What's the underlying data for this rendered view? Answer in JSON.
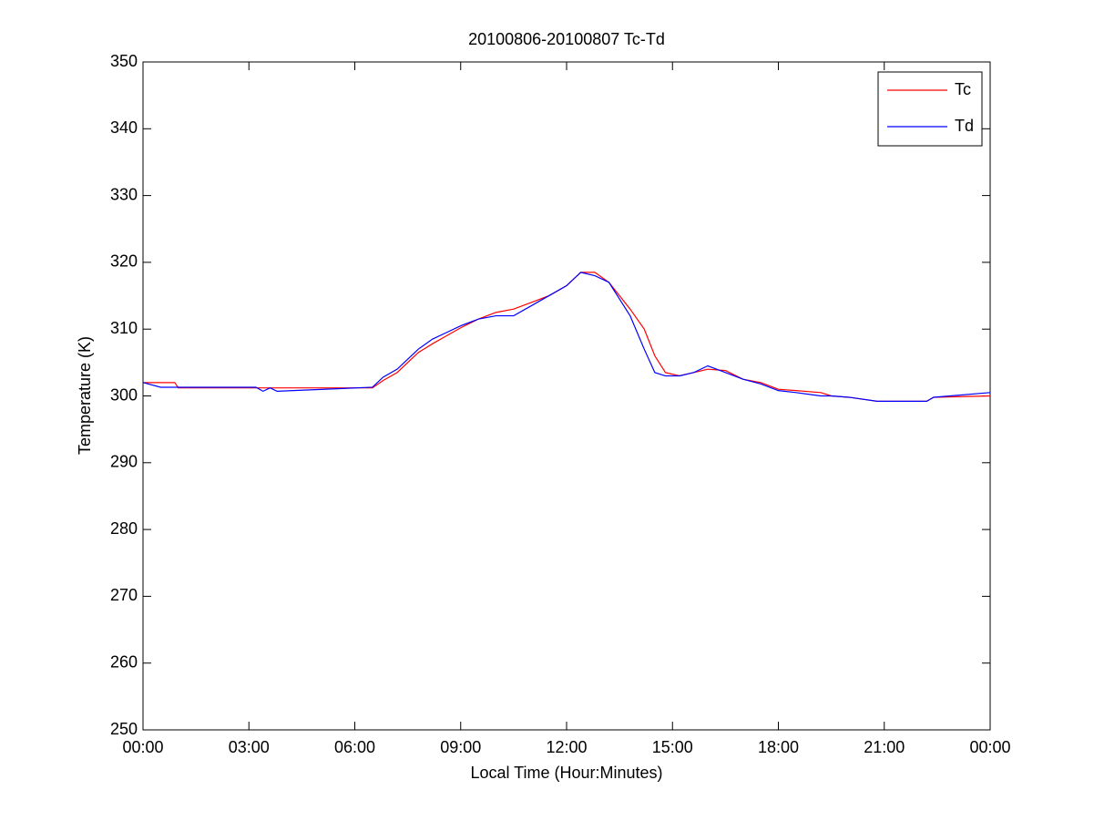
{
  "chart_data": {
    "type": "line",
    "title": "20100806-20100807 Tc-Td",
    "xlabel": "Local Time (Hour:Minutes)",
    "ylabel": "Temperature (K)",
    "x": [
      0,
      0.5,
      0.9,
      1,
      3.2,
      3.4,
      3.6,
      3.8,
      6.5,
      6.8,
      7.2,
      7.5,
      7.8,
      8.2,
      8.6,
      9,
      9.5,
      10,
      10.5,
      11,
      11.5,
      12,
      12.4,
      12.8,
      13.2,
      13.5,
      13.8,
      14.2,
      14.5,
      14.8,
      15.2,
      15.6,
      16,
      16.5,
      17,
      17.5,
      18,
      18.5,
      19.2,
      19.5,
      20,
      20.8,
      22.2,
      22.4,
      24
    ],
    "series": [
      {
        "name": "Tc",
        "color": "#ff0000",
        "values": [
          302,
          302,
          302,
          301.2,
          301.2,
          301.2,
          301.2,
          301.2,
          301.2,
          302.3,
          303.5,
          305,
          306.5,
          307.8,
          309,
          310.2,
          311.5,
          312.5,
          313,
          314,
          315,
          316.5,
          318.5,
          318.5,
          317,
          315,
          313,
          310,
          306,
          303.5,
          303,
          303.5,
          304,
          303.8,
          302.5,
          302,
          301,
          300.8,
          300.5,
          300,
          299.8,
          299.2,
          299.2,
          299.8,
          300
        ]
      },
      {
        "name": "Td",
        "color": "#0000ff",
        "values": [
          302,
          301.3,
          301.3,
          301.3,
          301.3,
          300.7,
          301.2,
          300.7,
          301.3,
          302.8,
          304,
          305.5,
          307,
          308.5,
          309.5,
          310.5,
          311.5,
          312,
          312,
          313.5,
          315,
          316.5,
          318.5,
          318,
          317,
          314.5,
          312,
          307,
          303.5,
          303,
          303,
          303.5,
          304.5,
          303.5,
          302.5,
          301.8,
          300.8,
          300.5,
          300,
          300,
          299.8,
          299.2,
          299.2,
          299.8,
          300.5
        ]
      }
    ],
    "xlim": [
      0,
      24
    ],
    "xticks": [
      {
        "value": 0,
        "label": "00:00"
      },
      {
        "value": 3,
        "label": "03:00"
      },
      {
        "value": 6,
        "label": "06:00"
      },
      {
        "value": 9,
        "label": "09:00"
      },
      {
        "value": 12,
        "label": "12:00"
      },
      {
        "value": 15,
        "label": "15:00"
      },
      {
        "value": 18,
        "label": "18:00"
      },
      {
        "value": 21,
        "label": "21:00"
      },
      {
        "value": 24,
        "label": "00:00"
      }
    ],
    "ylim": [
      250,
      350
    ],
    "yticks": [
      250,
      260,
      270,
      280,
      290,
      300,
      310,
      320,
      330,
      340,
      350
    ],
    "grid": false,
    "legend": "upper right"
  }
}
